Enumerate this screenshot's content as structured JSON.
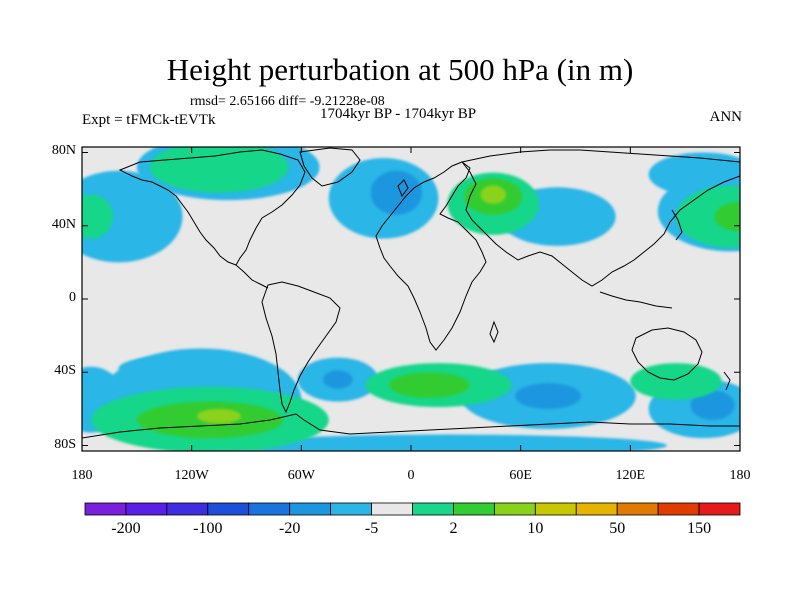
{
  "title": "Height perturbation at 500 hPa (in m)",
  "stats": "rmsd= 2.65166 diff= -9.21228e-08",
  "period": "1704kyr BP - 1704kyr BP",
  "experiment": "Expt = tFMCk-tEVTk",
  "season": "ANN",
  "lat_ticks": [
    {
      "label": "80N",
      "lat": 80
    },
    {
      "label": "40N",
      "lat": 40
    },
    {
      "label": "0",
      "lat": 0
    },
    {
      "label": "40S",
      "lat": -40
    },
    {
      "label": "80S",
      "lat": -80
    }
  ],
  "lon_ticks": [
    {
      "label": "180",
      "lon": -180
    },
    {
      "label": "120W",
      "lon": -120
    },
    {
      "label": "60W",
      "lon": -60
    },
    {
      "label": "0",
      "lon": 0
    },
    {
      "label": "60E",
      "lon": 60
    },
    {
      "label": "120E",
      "lon": 120
    },
    {
      "label": "180",
      "lon": 180
    }
  ],
  "colorbar": {
    "colors": [
      "#7a1fdc",
      "#5a1fe6",
      "#3f2ee0",
      "#1e4fd8",
      "#1a74e0",
      "#1c96de",
      "#2cb6e6",
      "#e8e8e8",
      "#19d68a",
      "#33cc33",
      "#8ad21a",
      "#c8c800",
      "#e6b400",
      "#e07a00",
      "#e03c00",
      "#e61a1a"
    ],
    "labels": [
      {
        "text": "-200",
        "index": 1
      },
      {
        "text": "-100",
        "index": 3
      },
      {
        "text": "-20",
        "index": 5
      },
      {
        "text": "-5",
        "index": 7
      },
      {
        "text": "2",
        "index": 9
      },
      {
        "text": "10",
        "index": 11
      },
      {
        "text": "50",
        "index": 13
      },
      {
        "text": "150",
        "index": 15
      }
    ]
  },
  "anomalies": [
    {
      "lon": -110,
      "lat": -66,
      "rx": 65,
      "ry": 18,
      "level": "positive"
    },
    {
      "lon": -110,
      "lat": -66,
      "rx": 40,
      "ry": 10,
      "level": "strong-positive"
    },
    {
      "lon": -105,
      "lat": -64,
      "rx": 12,
      "ry": 4,
      "level": "peak-positive"
    },
    {
      "lon": 15,
      "lat": -47,
      "rx": 40,
      "ry": 12,
      "level": "positive"
    },
    {
      "lon": 10,
      "lat": -47,
      "rx": 22,
      "ry": 7,
      "level": "strong-positive"
    },
    {
      "lon": 45,
      "lat": 52,
      "rx": 25,
      "ry": 17,
      "level": "positive"
    },
    {
      "lon": 45,
      "lat": 56,
      "rx": 16,
      "ry": 10,
      "level": "strong-positive"
    },
    {
      "lon": 45,
      "lat": 57,
      "rx": 7,
      "ry": 5,
      "level": "peak-positive"
    },
    {
      "lon": -105,
      "lat": 72,
      "rx": 38,
      "ry": 14,
      "level": "positive"
    },
    {
      "lon": 145,
      "lat": -45,
      "rx": 25,
      "ry": 10,
      "level": "positive"
    },
    {
      "lon": 175,
      "lat": 45,
      "rx": 30,
      "ry": 17,
      "level": "positive"
    },
    {
      "lon": 180,
      "lat": 45,
      "rx": 14,
      "ry": 8,
      "level": "strong-positive"
    },
    {
      "lon": -175,
      "lat": 45,
      "rx": 12,
      "ry": 12,
      "level": "positive"
    }
  ],
  "negative_anomalies": [
    {
      "lon": -115,
      "lat": -55,
      "rx": 55,
      "ry": 28,
      "level": "negative"
    },
    {
      "lon": -175,
      "lat": -55,
      "rx": 18,
      "ry": 18,
      "level": "negative"
    },
    {
      "lon": -130,
      "lat": -38,
      "rx": 30,
      "ry": 7,
      "level": "negative"
    },
    {
      "lon": -40,
      "lat": -44,
      "rx": 22,
      "ry": 12,
      "level": "negative"
    },
    {
      "lon": -40,
      "lat": -44,
      "rx": 8,
      "ry": 5,
      "level": "strong-negative"
    },
    {
      "lon": -160,
      "lat": 45,
      "rx": 35,
      "ry": 25,
      "level": "negative"
    },
    {
      "lon": -15,
      "lat": 55,
      "rx": 30,
      "ry": 22,
      "level": "negative"
    },
    {
      "lon": -8,
      "lat": 58,
      "rx": 14,
      "ry": 12,
      "level": "strong-negative"
    },
    {
      "lon": 80,
      "lat": 45,
      "rx": 32,
      "ry": 16,
      "level": "negative"
    },
    {
      "lon": 75,
      "lat": -53,
      "rx": 48,
      "ry": 18,
      "level": "negative"
    },
    {
      "lon": 75,
      "lat": -53,
      "rx": 18,
      "ry": 7,
      "level": "strong-negative"
    },
    {
      "lon": 20,
      "lat": -80,
      "rx": 120,
      "ry": 6,
      "level": "negative"
    },
    {
      "lon": 160,
      "lat": -60,
      "rx": 30,
      "ry": 16,
      "level": "negative"
    },
    {
      "lon": 165,
      "lat": -58,
      "rx": 12,
      "ry": 8,
      "level": "strong-negative"
    },
    {
      "lon": -100,
      "lat": 72,
      "rx": 50,
      "ry": 18,
      "level": "negative"
    },
    {
      "lon": 160,
      "lat": 68,
      "rx": 30,
      "ry": 12,
      "level": "negative"
    },
    {
      "lon": 175,
      "lat": 48,
      "rx": 40,
      "ry": 22,
      "level": "negative"
    }
  ]
}
